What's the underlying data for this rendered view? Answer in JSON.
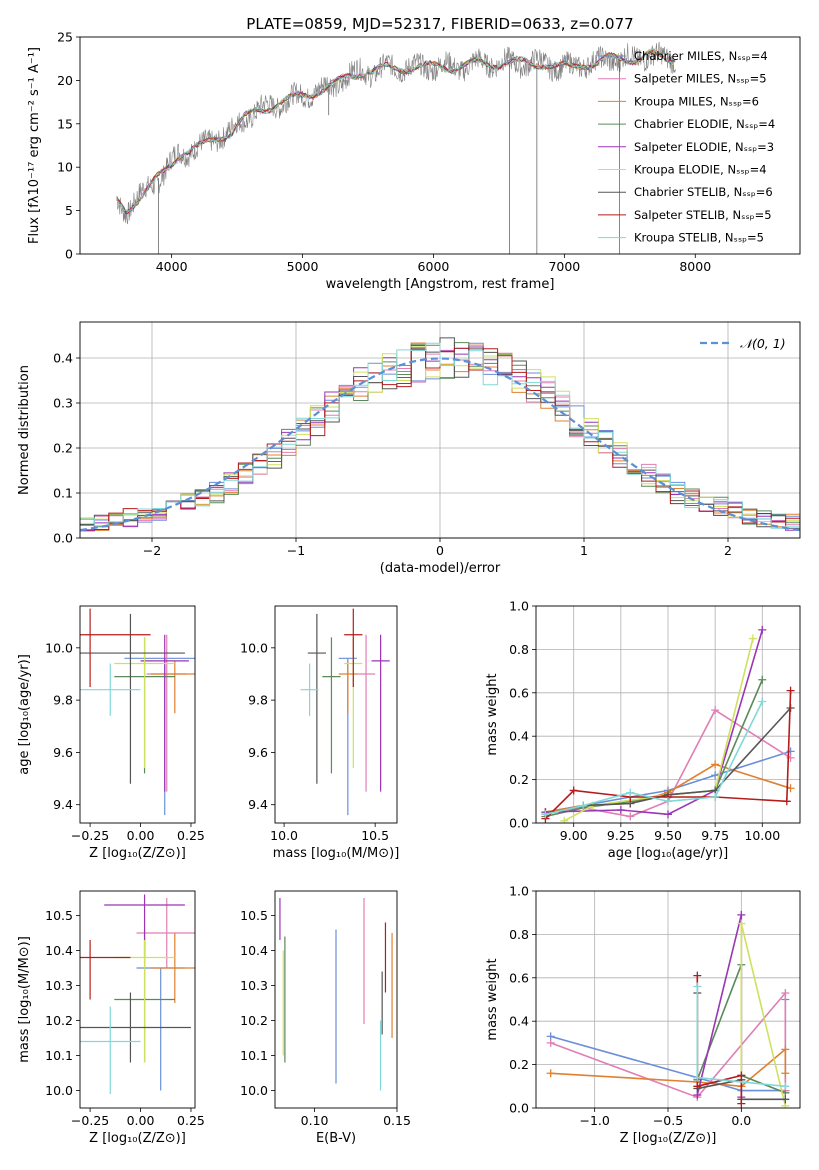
{
  "figure_title": "PLATE=0859, MJD=52317, FIBERID=0633, z=0.077",
  "colors": {
    "Chabrier MILES": "#6a8fd8",
    "Salpeter MILES": "#e07fb5",
    "Kroupa MILES": "#e08030",
    "Chabrier ELODIE": "#5a8a5a",
    "Salpeter ELODIE": "#9a35b5",
    "Kroupa ELODIE": "#d0e060",
    "Chabrier STELIB": "#555555",
    "Salpeter STELIB": "#b51c1c",
    "Kroupa STELIB": "#80d8d8",
    "data": "#808080",
    "normal": "#5b8fd8"
  },
  "chart_data": [
    {
      "id": "spectrum",
      "type": "line",
      "xlabel": "wavelength [Angstrom, rest frame]",
      "ylabel": "Flux [fλ10⁻¹⁷ erg cm⁻² s⁻¹ A⁻¹]",
      "xlim": [
        3300,
        8800
      ],
      "ylim": [
        0,
        25
      ],
      "xticks": [
        4000,
        5000,
        6000,
        7000,
        8000
      ],
      "yticks": [
        0,
        5,
        10,
        15,
        20,
        25
      ],
      "legend_position": "right",
      "series": [
        {
          "name": "Chabrier MILES, Nₛₛₚ=4"
        },
        {
          "name": "Salpeter MILES, Nₛₛₚ=5"
        },
        {
          "name": "Kroupa MILES, Nₛₛₚ=6"
        },
        {
          "name": "Chabrier ELODIE, Nₛₛₚ=4"
        },
        {
          "name": "Salpeter ELODIE, Nₛₛₚ=3"
        },
        {
          "name": "Kroupa ELODIE, Nₛₛₚ=4"
        },
        {
          "name": "Chabrier STELIB, Nₛₛₚ=6"
        },
        {
          "name": "Salpeter STELIB, Nₛₛₚ=5"
        },
        {
          "name": "Kroupa STELIB, Nₛₛₚ=5"
        }
      ],
      "continuum": {
        "x": [
          3580,
          3650,
          3750,
          3850,
          3950,
          4050,
          4150,
          4250,
          4350,
          4450,
          4550,
          4650,
          4750,
          4850,
          4950,
          5050,
          5150,
          5250,
          5350,
          5450,
          5550,
          5650,
          5750,
          5850,
          5950,
          6050,
          6150,
          6250,
          6350,
          6450,
          6550,
          6650,
          6750,
          6850,
          6950,
          7050,
          7150,
          7250,
          7350,
          7450,
          7550,
          7650,
          7750,
          7850
        ],
        "y": [
          6.0,
          5.0,
          6.5,
          8.0,
          9.5,
          11.5,
          12.0,
          12.5,
          13.5,
          14.0,
          15.5,
          16.5,
          17.0,
          17.5,
          18.0,
          18.5,
          19.0,
          19.5,
          20.5,
          21.0,
          21.0,
          21.5,
          21.5,
          21.5,
          21.5,
          21.7,
          21.5,
          21.7,
          22.0,
          22.0,
          22.0,
          22.0,
          22.0,
          22.0,
          21.5,
          21.5,
          22.0,
          22.0,
          22.5,
          22.5,
          22.5,
          23.0,
          22.5,
          22.5
        ]
      }
    },
    {
      "id": "residuals",
      "type": "bar",
      "xlabel": "(data-model)/error",
      "ylabel": "Normed distribution",
      "xlim": [
        -2.5,
        2.5
      ],
      "ylim": [
        0,
        0.48
      ],
      "xticks": [
        -2,
        -1,
        0,
        1,
        2
      ],
      "yticks": [
        0.0,
        0.1,
        0.2,
        0.3,
        0.4
      ],
      "legend": "𝒩(0, 1)",
      "legend_position": "top-right",
      "grid": true,
      "bin_width": 0.1,
      "bins_start": -2.5,
      "envelope": [
        0.03,
        0.035,
        0.04,
        0.045,
        0.05,
        0.06,
        0.07,
        0.08,
        0.09,
        0.1,
        0.12,
        0.14,
        0.16,
        0.185,
        0.21,
        0.235,
        0.26,
        0.29,
        0.32,
        0.34,
        0.36,
        0.37,
        0.38,
        0.39,
        0.395,
        0.4,
        0.395,
        0.39,
        0.38,
        0.37,
        0.36,
        0.34,
        0.32,
        0.29,
        0.26,
        0.235,
        0.21,
        0.185,
        0.16,
        0.14,
        0.12,
        0.1,
        0.09,
        0.08,
        0.07,
        0.06,
        0.05,
        0.045,
        0.04,
        0.035
      ]
    },
    {
      "id": "age-vs-Z",
      "type": "scatter",
      "xlabel": "Z [log₁₀(Z/Z⊙)]",
      "ylabel": "age  [log₁₀(age/yr)]",
      "xlim": [
        -0.3,
        0.27
      ],
      "ylim": [
        9.33,
        10.16
      ],
      "xticks": [
        -0.25,
        0.0,
        0.25
      ],
      "yticks": [
        9.4,
        9.6,
        9.8,
        10.0
      ],
      "points": [
        {
          "m": "Chabrier MILES",
          "x": 0.12,
          "y": 9.96,
          "xerr": 0.2,
          "yerr": [
            0.6,
            0.0
          ]
        },
        {
          "m": "Salpeter MILES",
          "x": 0.13,
          "y": 9.9,
          "xerr": 0.1,
          "yerr": [
            0.45,
            0.15
          ]
        },
        {
          "m": "Kroupa MILES",
          "x": 0.17,
          "y": 9.9,
          "xerr": 0.12,
          "yerr": [
            0.15,
            0.05
          ]
        },
        {
          "m": "Chabrier ELODIE",
          "x": 0.02,
          "y": 9.89,
          "xerr": 0.15,
          "yerr": [
            0.37,
            0.15
          ]
        },
        {
          "m": "Salpeter ELODIE",
          "x": 0.12,
          "y": 9.95,
          "xerr": 0.12,
          "yerr": [
            0.5,
            0.1
          ]
        },
        {
          "m": "Kroupa ELODIE",
          "x": 0.02,
          "y": 9.94,
          "xerr": 0.15,
          "yerr": [
            0.4,
            0.1
          ]
        },
        {
          "m": "Chabrier STELIB",
          "x": -0.05,
          "y": 9.98,
          "xerr": 0.27,
          "yerr": [
            0.5,
            0.15
          ]
        },
        {
          "m": "Salpeter STELIB",
          "x": -0.25,
          "y": 10.05,
          "xerr": 0.3,
          "yerr": [
            0.2,
            0.1
          ]
        },
        {
          "m": "Kroupa STELIB",
          "x": -0.15,
          "y": 9.84,
          "xerr": 0.15,
          "yerr": [
            0.1,
            0.1
          ]
        }
      ]
    },
    {
      "id": "age-vs-mass",
      "type": "scatter",
      "xlabel": "mass [log₁₀(M/M⊙)]",
      "ylabel": "",
      "xlim": [
        9.95,
        10.62
      ],
      "ylim": [
        9.33,
        10.16
      ],
      "xticks": [
        10.0,
        10.5
      ],
      "yticks": [
        9.4,
        9.6,
        9.8,
        10.0
      ],
      "points": [
        {
          "m": "Chabrier MILES",
          "x": 10.35,
          "y": 9.96,
          "xerr": 0.05,
          "yerr": [
            0.6,
            0.0
          ]
        },
        {
          "m": "Salpeter MILES",
          "x": 10.45,
          "y": 9.9,
          "xerr": 0.05,
          "yerr": [
            0.45,
            0.15
          ]
        },
        {
          "m": "Kroupa MILES",
          "x": 10.35,
          "y": 9.9,
          "xerr": 0.05,
          "yerr": [
            0.15,
            0.05
          ]
        },
        {
          "m": "Chabrier ELODIE",
          "x": 10.26,
          "y": 9.89,
          "xerr": 0.05,
          "yerr": [
            0.37,
            0.15
          ]
        },
        {
          "m": "Salpeter ELODIE",
          "x": 10.53,
          "y": 9.95,
          "xerr": 0.05,
          "yerr": [
            0.5,
            0.1
          ]
        },
        {
          "m": "Kroupa ELODIE",
          "x": 10.38,
          "y": 9.94,
          "xerr": 0.05,
          "yerr": [
            0.4,
            0.1
          ]
        },
        {
          "m": "Chabrier STELIB",
          "x": 10.18,
          "y": 9.98,
          "xerr": 0.05,
          "yerr": [
            0.5,
            0.15
          ]
        },
        {
          "m": "Salpeter STELIB",
          "x": 10.38,
          "y": 10.05,
          "xerr": 0.05,
          "yerr": [
            0.2,
            0.1
          ]
        },
        {
          "m": "Kroupa STELIB",
          "x": 10.14,
          "y": 9.84,
          "xerr": 0.05,
          "yerr": [
            0.1,
            0.1
          ]
        }
      ]
    },
    {
      "id": "weight-vs-age",
      "type": "line",
      "xlabel": "age  [log₁₀(age/yr)]",
      "ylabel": "mass weight",
      "xlim": [
        8.8,
        10.2
      ],
      "ylim": [
        0.0,
        1.0
      ],
      "xticks": [
        9.0,
        9.25,
        9.5,
        9.75,
        10.0
      ],
      "yticks": [
        0.0,
        0.2,
        0.4,
        0.6,
        0.8,
        1.0
      ],
      "grid": true,
      "series": [
        {
          "m": "Chabrier MILES",
          "x": [
            8.85,
            9.05,
            9.3,
            9.5,
            9.75,
            10.15
          ],
          "y": [
            0.05,
            0.08,
            0.12,
            0.15,
            0.22,
            0.33
          ]
        },
        {
          "m": "Salpeter MILES",
          "x": [
            8.85,
            9.05,
            9.3,
            9.5,
            9.75,
            10.15
          ],
          "y": [
            0.05,
            0.07,
            0.03,
            0.1,
            0.52,
            0.3
          ]
        },
        {
          "m": "Kroupa MILES",
          "x": [
            8.85,
            9.05,
            9.3,
            9.5,
            9.75,
            10.15
          ],
          "y": [
            0.05,
            0.08,
            0.09,
            0.14,
            0.27,
            0.16
          ]
        },
        {
          "m": "Chabrier ELODIE",
          "x": [
            8.85,
            9.05,
            9.3,
            9.5,
            9.75,
            10.0
          ],
          "y": [
            0.03,
            0.07,
            0.1,
            0.13,
            0.15,
            0.66
          ]
        },
        {
          "m": "Salpeter ELODIE",
          "x": [
            8.85,
            9.25,
            9.5,
            9.75,
            10.0
          ],
          "y": [
            0.05,
            0.06,
            0.04,
            0.15,
            0.89
          ]
        },
        {
          "m": "Kroupa ELODIE",
          "x": [
            8.95,
            9.1,
            9.5,
            9.75,
            9.95
          ],
          "y": [
            0.01,
            0.08,
            0.13,
            0.15,
            0.85
          ]
        },
        {
          "m": "Chabrier STELIB",
          "x": [
            8.85,
            9.05,
            9.3,
            9.5,
            9.75,
            10.15
          ],
          "y": [
            0.04,
            0.08,
            0.09,
            0.13,
            0.15,
            0.53
          ]
        },
        {
          "m": "Salpeter STELIB",
          "x": [
            8.85,
            9.0,
            9.3,
            9.5,
            9.75,
            10.13,
            10.15
          ],
          "y": [
            0.02,
            0.15,
            0.12,
            0.12,
            0.12,
            0.1,
            0.61
          ]
        },
        {
          "m": "Kroupa STELIB",
          "x": [
            8.85,
            9.05,
            9.3,
            9.5,
            9.75,
            10.0
          ],
          "y": [
            0.04,
            0.08,
            0.14,
            0.1,
            0.12,
            0.56
          ]
        }
      ]
    },
    {
      "id": "mass-vs-Z",
      "type": "scatter",
      "xlabel": "Z [log₁₀(Z/Z⊙)]",
      "ylabel": "mass [log₁₀(M/M⊙)]",
      "xlim": [
        -0.3,
        0.27
      ],
      "ylim": [
        9.95,
        10.57
      ],
      "xticks": [
        -0.25,
        0.0,
        0.25
      ],
      "yticks": [
        10.0,
        10.1,
        10.2,
        10.3,
        10.4,
        10.5
      ],
      "points": [
        {
          "m": "Chabrier MILES",
          "x": 0.1,
          "y": 10.35,
          "xerr": 0.12,
          "yerr": [
            0.35,
            0.0
          ]
        },
        {
          "m": "Salpeter MILES",
          "x": 0.13,
          "y": 10.45,
          "xerr": 0.15,
          "yerr": [
            0.1,
            0.1
          ]
        },
        {
          "m": "Kroupa MILES",
          "x": 0.17,
          "y": 10.35,
          "xerr": 0.12,
          "yerr": [
            0.1,
            0.1
          ]
        },
        {
          "m": "Chabrier ELODIE",
          "x": 0.02,
          "y": 10.26,
          "xerr": 0.15,
          "yerr": [
            0.18,
            0.2
          ]
        },
        {
          "m": "Salpeter ELODIE",
          "x": 0.02,
          "y": 10.53,
          "xerr": 0.2,
          "yerr": [
            0.15,
            0.03
          ]
        },
        {
          "m": "Kroupa ELODIE",
          "x": 0.02,
          "y": 10.38,
          "xerr": 0.15,
          "yerr": [
            0.3,
            0.05
          ]
        },
        {
          "m": "Chabrier STELIB",
          "x": -0.05,
          "y": 10.18,
          "xerr": 0.3,
          "yerr": [
            0.1,
            0.1
          ]
        },
        {
          "m": "Salpeter STELIB",
          "x": -0.25,
          "y": 10.38,
          "xerr": 0.2,
          "yerr": [
            0.12,
            0.05
          ]
        },
        {
          "m": "Kroupa STELIB",
          "x": -0.15,
          "y": 10.14,
          "xerr": 0.15,
          "yerr": [
            0.15,
            0.1
          ]
        }
      ]
    },
    {
      "id": "mass-vs-EBV",
      "type": "scatter",
      "xlabel": "E(B-V)",
      "ylabel": "",
      "xlim": [
        0.076,
        0.15
      ],
      "ylim": [
        9.95,
        10.57
      ],
      "xticks": [
        0.1,
        0.15
      ],
      "yticks": [
        10.0,
        10.1,
        10.2,
        10.3,
        10.4,
        10.5
      ],
      "points": [
        {
          "m": "Chabrier MILES",
          "x": 0.113,
          "y": 10.24,
          "yerr": [
            0.22,
            0.22
          ]
        },
        {
          "m": "Salpeter MILES",
          "x": 0.13,
          "y": 10.37,
          "yerr": [
            0.18,
            0.18
          ]
        },
        {
          "m": "Kroupa MILES",
          "x": 0.147,
          "y": 10.3,
          "yerr": [
            0.15,
            0.15
          ]
        },
        {
          "m": "Chabrier ELODIE",
          "x": 0.082,
          "y": 10.26,
          "yerr": [
            0.18,
            0.18
          ]
        },
        {
          "m": "Salpeter ELODIE",
          "x": 0.079,
          "y": 10.49,
          "yerr": [
            0.06,
            0.06
          ]
        },
        {
          "m": "Kroupa ELODIE",
          "x": 0.081,
          "y": 10.25,
          "yerr": [
            0.15,
            0.15
          ]
        },
        {
          "m": "Chabrier STELIB",
          "x": 0.141,
          "y": 10.25,
          "yerr": [
            0.09,
            0.09
          ]
        },
        {
          "m": "Salpeter STELIB",
          "x": 0.143,
          "y": 10.38,
          "yerr": [
            0.1,
            0.1
          ]
        },
        {
          "m": "Kroupa STELIB",
          "x": 0.14,
          "y": 10.1,
          "yerr": [
            0.1,
            0.1
          ]
        }
      ]
    },
    {
      "id": "weight-vs-Z",
      "type": "line",
      "xlabel": "Z [log₁₀(Z/Z⊙)]",
      "ylabel": "mass weight",
      "xlim": [
        -1.4,
        0.4
      ],
      "ylim": [
        0.0,
        1.0
      ],
      "xticks": [
        -1.0,
        -0.5,
        0.0
      ],
      "yticks": [
        0.0,
        0.2,
        0.4,
        0.6,
        0.8,
        1.0
      ],
      "grid": true,
      "series": [
        {
          "m": "Chabrier MILES",
          "x": [
            -1.3,
            -0.3,
            0.0,
            0.3,
            0.3
          ],
          "y": [
            0.33,
            0.14,
            0.08,
            0.08,
            0.5
          ]
        },
        {
          "m": "Salpeter MILES",
          "x": [
            -1.3,
            -0.3,
            0.3,
            0.3
          ],
          "y": [
            0.3,
            0.05,
            0.53,
            0.08
          ]
        },
        {
          "m": "Kroupa MILES",
          "x": [
            -1.3,
            -0.3,
            0.0,
            0.3,
            0.3
          ],
          "y": [
            0.16,
            0.12,
            0.1,
            0.27,
            0.16
          ]
        },
        {
          "m": "Chabrier ELODIE",
          "x": [
            -0.3,
            0.0,
            0.0,
            0.3
          ],
          "y": [
            0.13,
            0.66,
            0.15,
            0.07
          ]
        },
        {
          "m": "Salpeter ELODIE",
          "x": [
            -0.3,
            0.0,
            0.0
          ],
          "y": [
            0.06,
            0.89,
            0.05
          ]
        },
        {
          "m": "Kroupa ELODIE",
          "x": [
            0.0,
            0.0,
            0.3
          ],
          "y": [
            0.13,
            0.85,
            0.01
          ]
        },
        {
          "m": "Chabrier STELIB",
          "x": [
            -0.3,
            -0.3,
            0.0,
            0.0,
            0.3
          ],
          "y": [
            0.53,
            0.09,
            0.13,
            0.04,
            0.04
          ]
        },
        {
          "m": "Salpeter STELIB",
          "x": [
            -0.3,
            -0.3,
            0.0,
            0.0
          ],
          "y": [
            0.61,
            0.1,
            0.15,
            0.02
          ]
        },
        {
          "m": "Kroupa STELIB",
          "x": [
            -0.3,
            -0.3,
            0.3
          ],
          "y": [
            0.56,
            0.14,
            0.1
          ]
        }
      ]
    }
  ]
}
